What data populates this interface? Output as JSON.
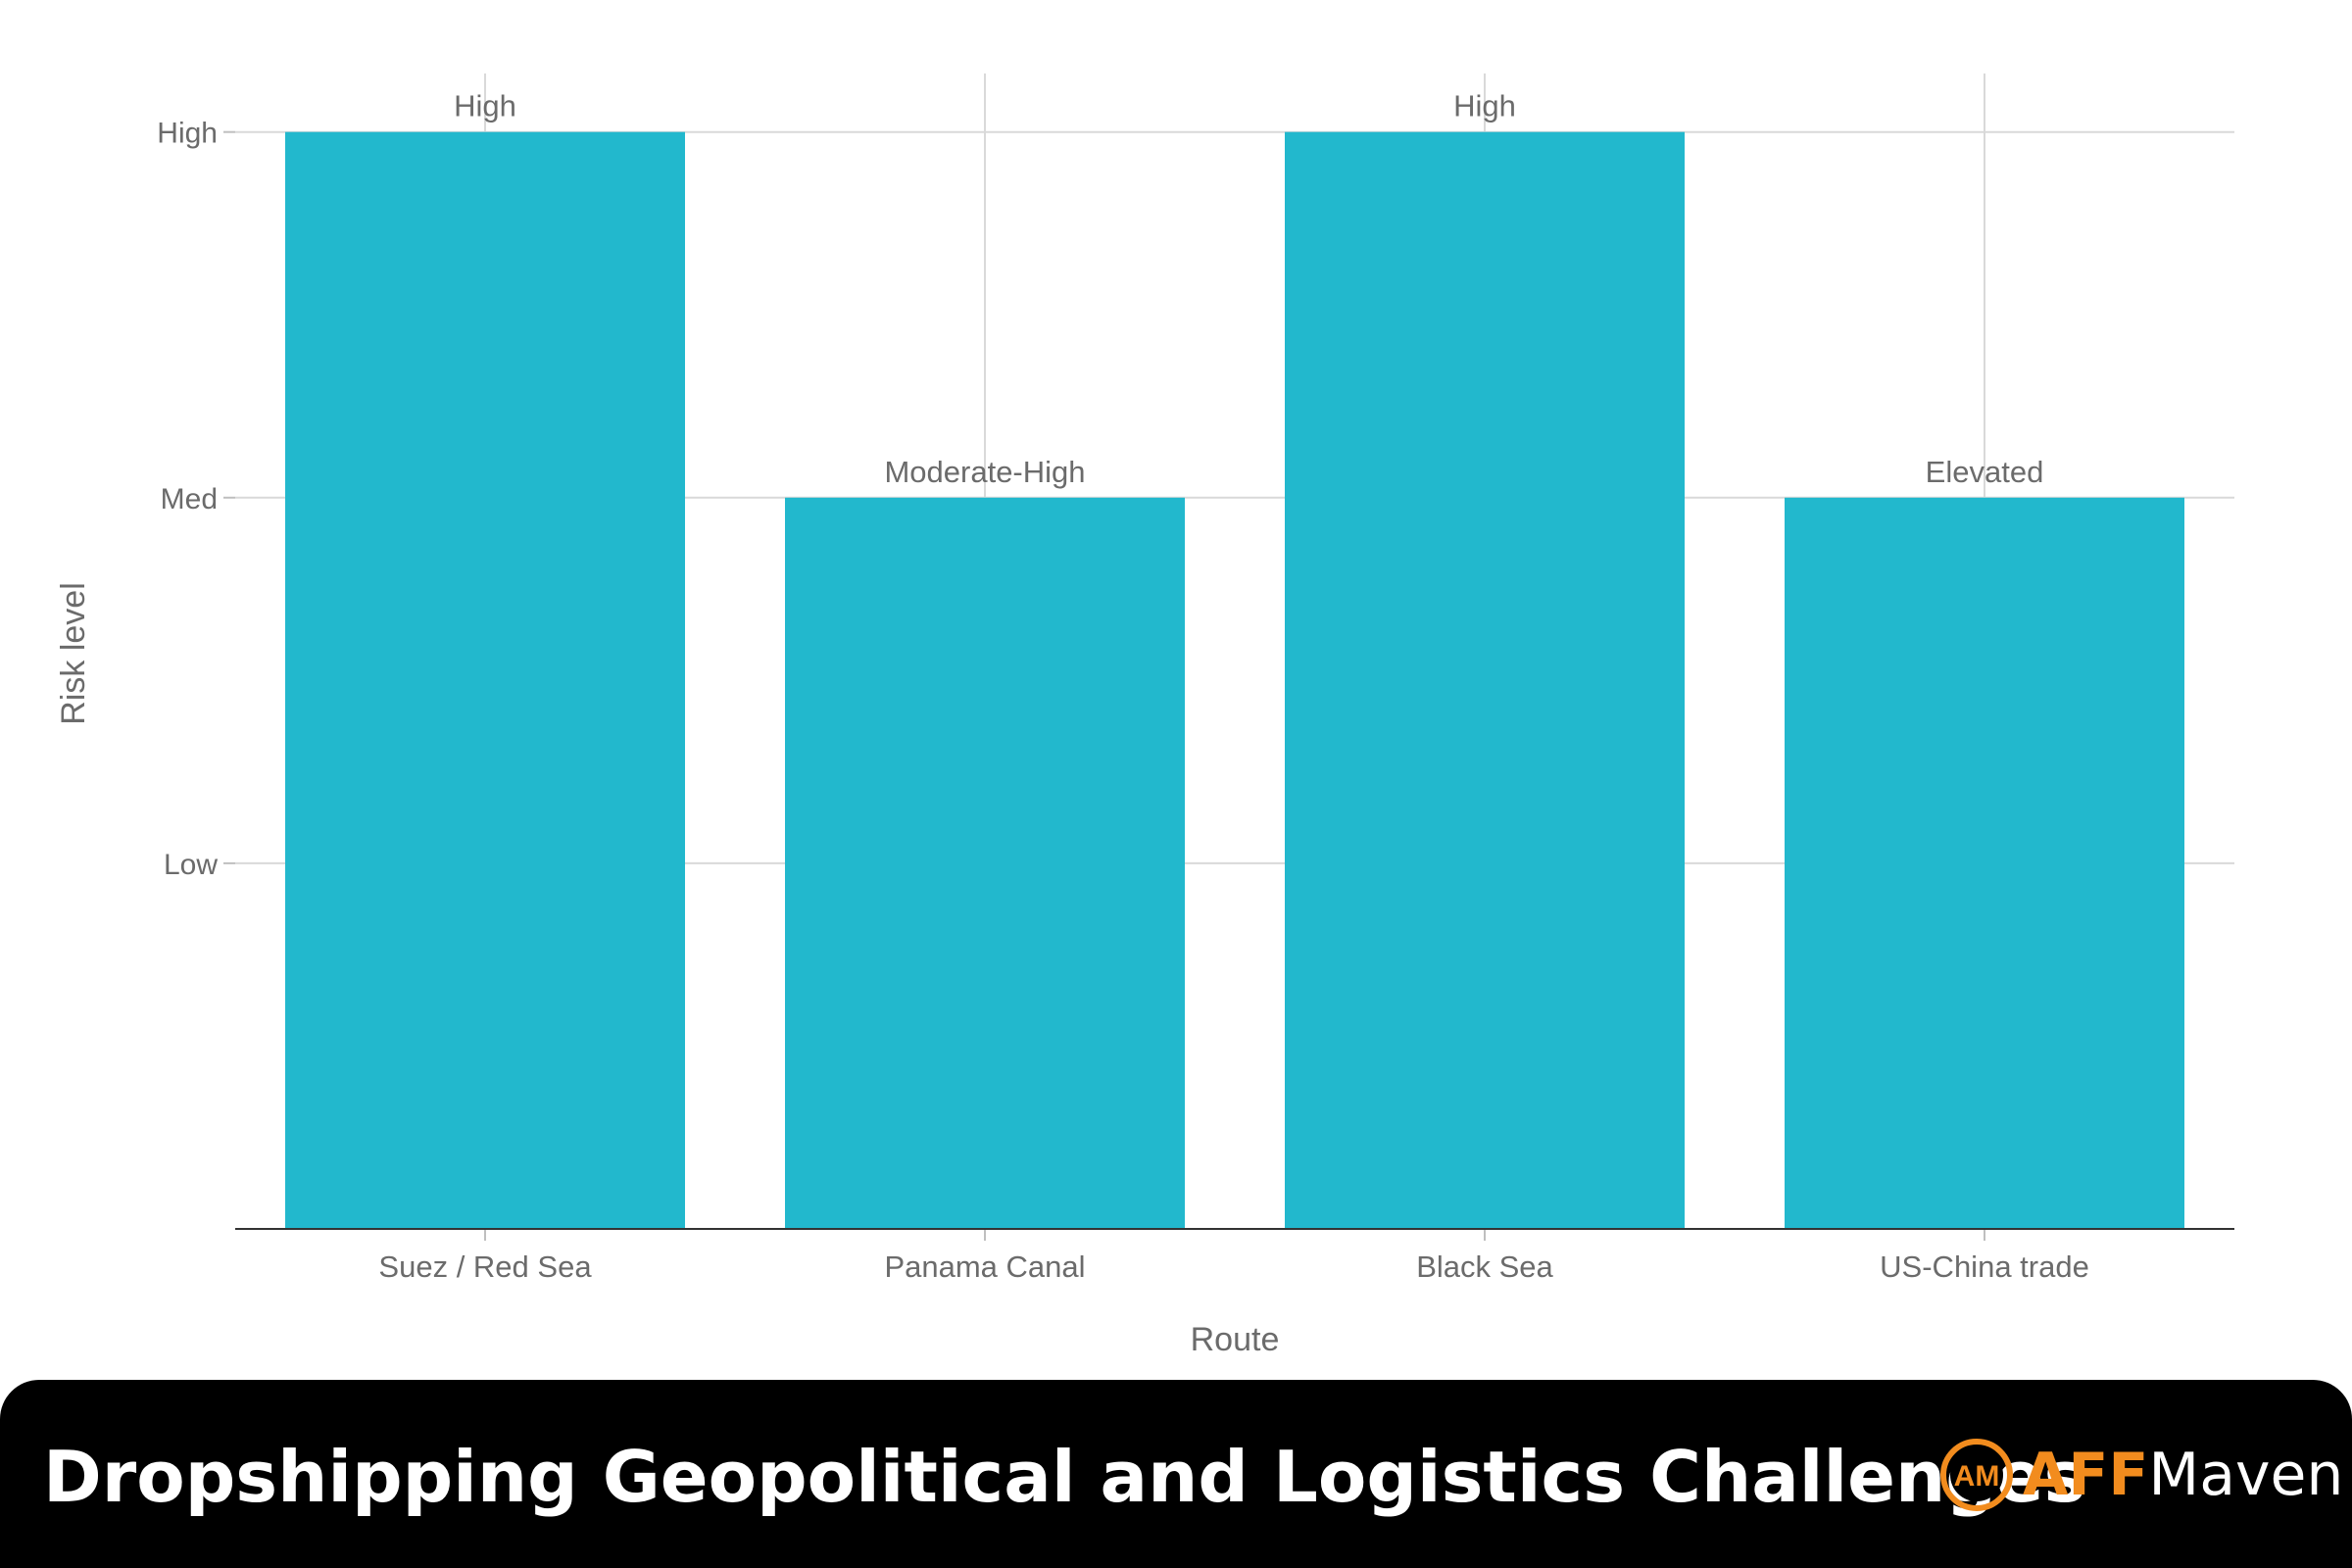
{
  "chart_data": {
    "type": "bar",
    "categories": [
      "Suez / Red Sea",
      "Panama Canal",
      "Black Sea",
      "US-China trade"
    ],
    "values": [
      3,
      2,
      3,
      2
    ],
    "data_labels": [
      "High",
      "Moderate-High",
      "High",
      "Elevated"
    ],
    "xlabel": "Route",
    "ylabel": "Risk level",
    "ylim": [
      0,
      3.16
    ],
    "yticks": [
      {
        "value": 1,
        "label": "Low"
      },
      {
        "value": 2,
        "label": "Med"
      },
      {
        "value": 3,
        "label": "High"
      }
    ],
    "grid": true,
    "bar_color": "#22b8cd"
  },
  "footer": {
    "title": "Dropshipping Geopolitical and Logistics Challenges",
    "logo_accent": "AFF",
    "logo_rest": "Maven",
    "logo_monogram": "AM",
    "accent_color": "#f28c1e"
  }
}
